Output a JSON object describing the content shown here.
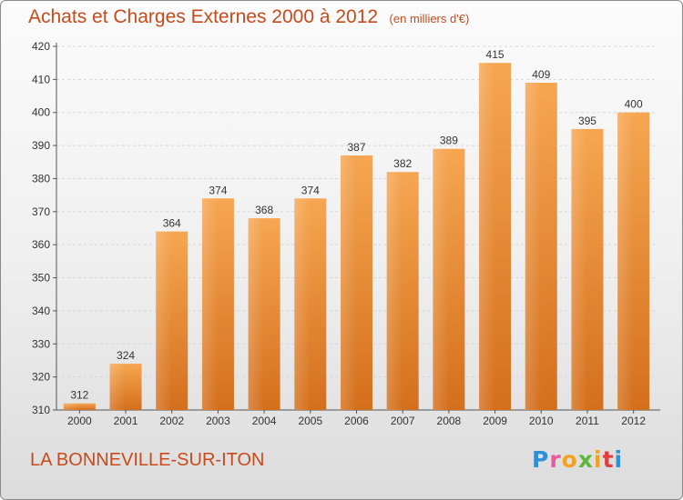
{
  "header": {
    "title": "Achats et Charges Externes 2000 à 2012",
    "unit": "(en milliers d'€)"
  },
  "footer": {
    "city": "LA BONNEVILLE-SUR-ITON",
    "logo": "Proxiti",
    "logo_colors": [
      "#2f8fd8",
      "#e85a9a",
      "#f2a21e",
      "#5db83a",
      "#f2a21e",
      "#e04040",
      "#2f8fd8"
    ]
  },
  "colors": {
    "bar_top": "#f6a651",
    "bar_bottom": "#d46f1c",
    "title": "#c84a1a",
    "grid": "#d6d6d6"
  },
  "chart_data": {
    "type": "bar",
    "categories": [
      "2000",
      "2001",
      "2002",
      "2003",
      "2004",
      "2005",
      "2006",
      "2007",
      "2008",
      "2009",
      "2010",
      "2011",
      "2012"
    ],
    "values": [
      312,
      324,
      364,
      374,
      368,
      374,
      387,
      382,
      389,
      415,
      409,
      395,
      400
    ],
    "ylim": [
      310,
      420
    ],
    "yticks": [
      310,
      320,
      330,
      340,
      350,
      360,
      370,
      380,
      390,
      400,
      410,
      420
    ],
    "grid": true,
    "data_labels": true,
    "title": "Achats et Charges Externes 2000 à 2012",
    "xlabel": "",
    "ylabel": ""
  }
}
